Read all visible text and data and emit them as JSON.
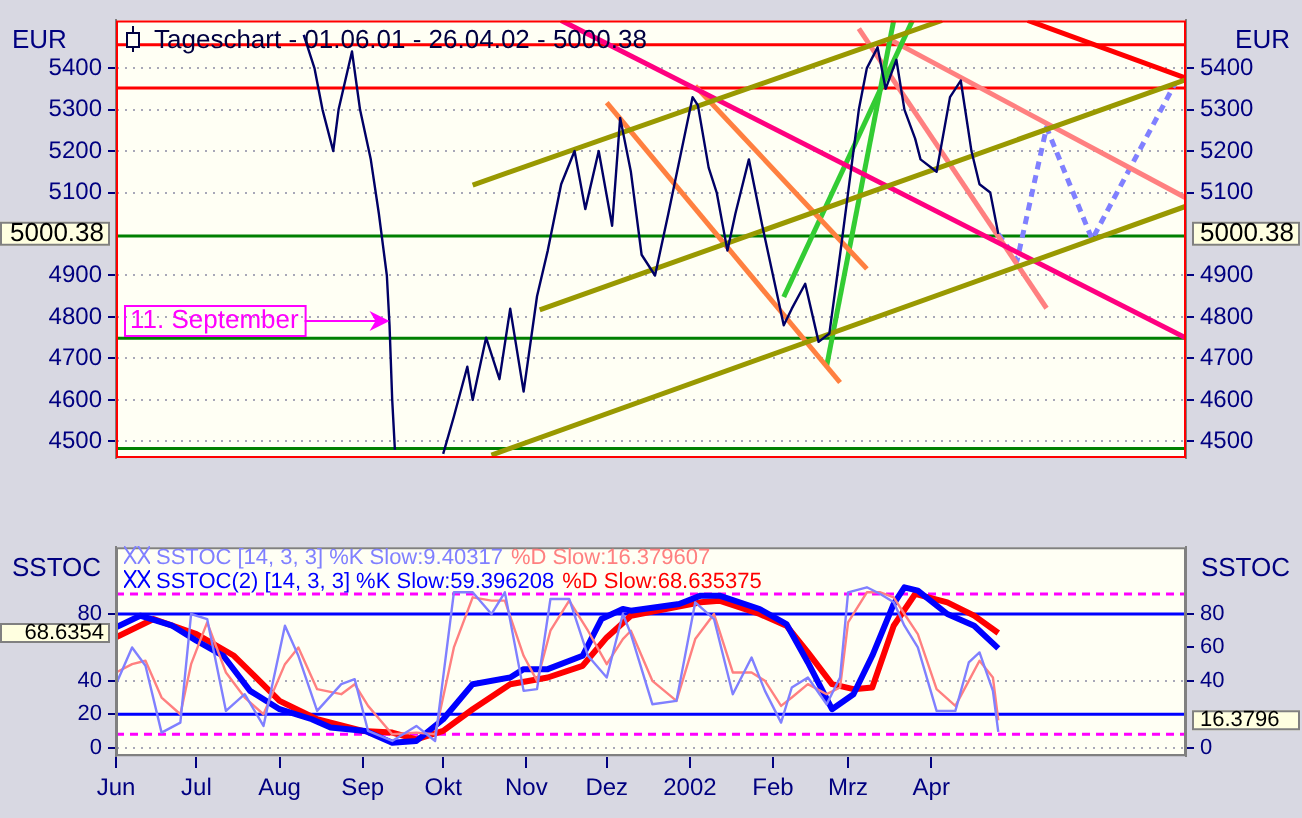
{
  "chart_data": [
    {
      "type": "line",
      "title": "Tageschart - 01.06.01 - 26.04.02 - 5000.38",
      "ylabel": "EUR",
      "y2label": "EUR",
      "xlim": [
        "2001-06-01",
        "2002-07-05"
      ],
      "ylim": [
        4460,
        5515
      ],
      "yticks": [
        4500,
        4600,
        4700,
        4800,
        4900,
        5100,
        5200,
        5300,
        5400
      ],
      "y2lim": [
        4460,
        5515
      ],
      "y2ticks": [
        4500,
        4600,
        4700,
        4800,
        4900,
        5100,
        5200,
        5300,
        5400
      ],
      "tick_labels": "y",
      "grid": "y",
      "series": [
        {
          "color": "#000066",
          "x": [
            "2001-08-10",
            "2001-08-14",
            "2001-08-17",
            "2001-08-21",
            "2001-08-23",
            "2001-08-28",
            "2001-08-31",
            "2001-09-04",
            "2001-09-07",
            "2001-09-10",
            "2001-09-11",
            "2001-09-12",
            "2001-09-13",
            "2001-09-17",
            "2001-10-01",
            "2001-10-05",
            "2001-10-10",
            "2001-10-12",
            "2001-10-17",
            "2001-10-22",
            "2001-10-26",
            "2001-10-31",
            "2001-11-05",
            "2001-11-09",
            "2001-11-14",
            "2001-11-19",
            "2001-11-23",
            "2001-11-28",
            "2001-12-03",
            "2001-12-06",
            "2001-12-10",
            "2001-12-14",
            "2001-12-19",
            "2001-12-24",
            "2002-01-02",
            "2002-01-04",
            "2002-01-08",
            "2002-01-11",
            "2002-01-15",
            "2002-01-18",
            "2002-01-23",
            "2002-01-28",
            "2002-02-01",
            "2002-02-05",
            "2002-02-08",
            "2002-02-13",
            "2002-02-18",
            "2002-02-22",
            "2002-02-26",
            "2002-03-01",
            "2002-03-05",
            "2002-03-08",
            "2002-03-12",
            "2002-03-15",
            "2002-03-19",
            "2002-03-22",
            "2002-03-26",
            "2002-03-28",
            "2002-04-03",
            "2002-04-08",
            "2002-04-12",
            "2002-04-16",
            "2002-04-19",
            "2002-04-23",
            "2002-04-26"
          ],
          "values": [
            5480,
            5400,
            5300,
            5200,
            5300,
            5440,
            5300,
            5180,
            5050,
            4900,
            4780,
            4600,
            4480,
            null,
            4470,
            4560,
            4680,
            4600,
            4750,
            4650,
            4820,
            4620,
            4850,
            4960,
            5120,
            5200,
            5060,
            5200,
            5020,
            5280,
            5150,
            4950,
            4900,
            5050,
            5330,
            5310,
            5160,
            5100,
            4960,
            5050,
            5180,
            5020,
            4900,
            4780,
            4820,
            4880,
            4740,
            4760,
            4950,
            5100,
            5300,
            5400,
            5450,
            5350,
            5420,
            5300,
            5230,
            5180,
            5150,
            5330,
            5370,
            5200,
            5120,
            5100,
            5000.38
          ]
        },
        {
          "type": "line",
          "color": "#999900",
          "x": [
            "2001-10-12",
            "2002-04-05"
          ],
          "values": [
            5118,
            5515
          ]
        },
        {
          "type": "line",
          "color": "#999900",
          "x": [
            "2001-11-06",
            "2002-07-05"
          ],
          "values": [
            4817,
            5372
          ]
        },
        {
          "type": "line",
          "color": "#999900",
          "x": [
            "2001-10-19",
            "2002-07-05"
          ],
          "values": [
            4467,
            5067
          ]
        },
        {
          "type": "line",
          "color": "#ff0080",
          "x": [
            "2001-11-14",
            "2002-07-05"
          ],
          "values": [
            5515,
            4749
          ]
        },
        {
          "type": "line",
          "color": "#ff0000",
          "x": [
            "2002-05-07",
            "2002-07-05"
          ],
          "values": [
            5515,
            5376
          ]
        },
        {
          "type": "line",
          "color": "#ff8040",
          "x": [
            "2001-12-01",
            "2002-02-26"
          ],
          "values": [
            5317,
            4642
          ]
        },
        {
          "type": "line",
          "color": "#ff8040",
          "x": [
            "2002-01-03",
            "2002-03-08"
          ],
          "values": [
            5357,
            4916
          ]
        },
        {
          "type": "line",
          "color": "#33cc33",
          "x": [
            "2002-02-05",
            "2002-03-25"
          ],
          "values": [
            4848,
            5515
          ]
        },
        {
          "type": "line",
          "color": "#33cc33",
          "x": [
            "2002-02-21",
            "2002-03-18"
          ],
          "values": [
            4682,
            5515
          ]
        },
        {
          "type": "line",
          "color": "#ff8080",
          "x": [
            "2002-03-05",
            "2002-05-14"
          ],
          "values": [
            5495,
            4821
          ]
        },
        {
          "type": "line",
          "color": "#ff8080",
          "x": [
            "2002-03-16",
            "2002-07-05"
          ],
          "values": [
            5471,
            5087
          ]
        },
        {
          "type": "line",
          "color": "#8080ff",
          "line_style": "dashed",
          "x": [
            "2002-04-26",
            "2002-05-03",
            "2002-05-14",
            "2002-05-31",
            "2002-07-01"
          ],
          "values": [
            5000.38,
            4936,
            5257,
            4987,
            5364
          ]
        }
      ],
      "ref_lines": [
        {
          "axis": "y",
          "value": 5456,
          "color": "#ff0000"
        },
        {
          "axis": "y",
          "value": 5352,
          "color": "#ff0000"
        },
        {
          "axis": "y",
          "value": 4995,
          "color": "#008000"
        },
        {
          "axis": "y",
          "value": 4749,
          "color": "#008000"
        },
        {
          "axis": "y",
          "value": 4483,
          "color": "#008000"
        }
      ],
      "annotations": [
        {
          "text": "5000.38",
          "x": "2001-06-01",
          "y": 5000.38
        },
        {
          "text": "5000.38",
          "x": "2002-07-05",
          "y": 5000.38
        },
        {
          "text": "11. September",
          "x": "2001-09-11",
          "y": 4790
        }
      ]
    },
    {
      "type": "line",
      "ylabel": "SSTOC",
      "y2label": "SSTOC",
      "legend": "top left",
      "grid": "y",
      "xlim": [
        "2001-06-01",
        "2002-07-05"
      ],
      "xticks": [
        {
          "value": "2001-06-01",
          "label": "Jun"
        },
        {
          "value": "2001-07-01",
          "label": "Jul"
        },
        {
          "value": "2001-08-01",
          "label": "Aug"
        },
        {
          "value": "2001-09-01",
          "label": "Sep"
        },
        {
          "value": "2001-10-01",
          "label": "Okt"
        },
        {
          "value": "2001-11-01",
          "label": "Nov"
        },
        {
          "value": "2001-12-01",
          "label": "Dez"
        },
        {
          "value": "2002-01-01",
          "label": "2002"
        },
        {
          "value": "2002-02-01",
          "label": "Feb"
        },
        {
          "value": "2002-03-01",
          "label": "Mrz"
        },
        {
          "value": "2002-04-01",
          "label": "Apr"
        }
      ],
      "ylim": [
        -5,
        120
      ],
      "yticks": [
        0,
        20,
        40,
        80
      ],
      "y2lim": [
        -5,
        120
      ],
      "y2ticks": [
        0,
        40,
        60,
        80
      ],
      "series": [
        {
          "name": "SSTOC [14, 3, 3] %K Slow:9.40317",
          "color": "#8080ff",
          "x": [
            "2001-06-01",
            "2001-06-07",
            "2001-06-12",
            "2001-06-18",
            "2001-06-25",
            "2001-06-29",
            "2001-07-05",
            "2001-07-12",
            "2001-07-19",
            "2001-07-26",
            "2001-08-03",
            "2001-08-08",
            "2001-08-15",
            "2001-08-24",
            "2001-08-29",
            "2001-09-03",
            "2001-09-12",
            "2001-09-21",
            "2001-09-28",
            "2001-10-05",
            "2001-10-12",
            "2001-10-19",
            "2001-10-24",
            "2001-10-31",
            "2001-11-05",
            "2001-11-10",
            "2001-11-17",
            "2001-11-24",
            "2001-12-01",
            "2001-12-07",
            "2001-12-10",
            "2001-12-18",
            "2001-12-27",
            "2002-01-03",
            "2002-01-10",
            "2002-01-17",
            "2002-01-24",
            "2002-01-29",
            "2002-02-04",
            "2002-02-08",
            "2002-02-14",
            "2002-02-21",
            "2002-02-26",
            "2002-03-01",
            "2002-03-08",
            "2002-03-13",
            "2002-03-18",
            "2002-03-22",
            "2002-03-27",
            "2002-04-03",
            "2002-04-10",
            "2002-04-15",
            "2002-04-19",
            "2002-04-24",
            "2002-04-26"
          ],
          "values": [
            38,
            60,
            49,
            9,
            15,
            80,
            77,
            22,
            32,
            13,
            73,
            55,
            22,
            38,
            41,
            10,
            4,
            13,
            4,
            93,
            93,
            80,
            93,
            34,
            35,
            89,
            89,
            55,
            42,
            80,
            68,
            26,
            28,
            87,
            77,
            32,
            54,
            34,
            15,
            36,
            42,
            26,
            42,
            93,
            96,
            92,
            87,
            73,
            60,
            22,
            22,
            51,
            57,
            34,
            9.40317
          ]
        },
        {
          "name": "%D Slow:16.379607",
          "color": "#ff8080",
          "x": [
            "2001-06-01",
            "2001-06-07",
            "2001-06-12",
            "2001-06-18",
            "2001-06-25",
            "2001-06-29",
            "2001-07-05",
            "2001-07-12",
            "2001-07-19",
            "2001-07-26",
            "2001-08-03",
            "2001-08-08",
            "2001-08-15",
            "2001-08-24",
            "2001-08-29",
            "2001-09-03",
            "2001-09-12",
            "2001-09-21",
            "2001-09-28",
            "2001-10-05",
            "2001-10-12",
            "2001-10-19",
            "2001-10-24",
            "2001-10-31",
            "2001-11-05",
            "2001-11-10",
            "2001-11-17",
            "2001-11-24",
            "2001-12-01",
            "2001-12-07",
            "2001-12-10",
            "2001-12-18",
            "2001-12-27",
            "2002-01-03",
            "2002-01-10",
            "2002-01-17",
            "2002-01-24",
            "2002-01-29",
            "2002-02-04",
            "2002-02-08",
            "2002-02-14",
            "2002-02-21",
            "2002-02-26",
            "2002-03-01",
            "2002-03-08",
            "2002-03-13",
            "2002-03-18",
            "2002-03-22",
            "2002-03-27",
            "2002-04-03",
            "2002-04-10",
            "2002-04-15",
            "2002-04-19",
            "2002-04-24",
            "2002-04-26"
          ],
          "values": [
            45,
            50,
            52,
            30,
            20,
            50,
            75,
            45,
            30,
            20,
            50,
            60,
            35,
            32,
            38,
            25,
            8,
            9,
            8,
            60,
            90,
            88,
            88,
            55,
            40,
            70,
            88,
            70,
            50,
            65,
            70,
            40,
            28,
            65,
            80,
            45,
            45,
            40,
            25,
            30,
            38,
            32,
            36,
            75,
            93,
            93,
            90,
            80,
            68,
            35,
            25,
            40,
            52,
            42,
            16.379607
          ]
        },
        {
          "name": "SSTOC(2) [14, 3, 3] %K Slow:59.396208",
          "color": "#0000ff",
          "x": [
            "2001-06-01",
            "2001-06-10",
            "2001-06-22",
            "2001-07-01",
            "2001-07-11",
            "2001-07-21",
            "2001-08-01",
            "2001-08-13",
            "2001-08-20",
            "2001-09-02",
            "2001-09-12",
            "2001-09-21",
            "2001-10-01",
            "2001-10-12",
            "2001-10-26",
            "2001-10-31",
            "2001-11-09",
            "2001-11-22",
            "2001-11-29",
            "2001-12-07",
            "2001-12-10",
            "2001-12-28",
            "2002-01-05",
            "2002-01-12",
            "2002-01-27",
            "2002-02-06",
            "2002-02-14",
            "2002-02-23",
            "2002-03-03",
            "2002-03-10",
            "2002-03-18",
            "2002-03-22",
            "2002-03-27",
            "2002-04-07",
            "2002-04-17",
            "2002-04-26"
          ],
          "values": [
            72,
            79,
            73,
            64,
            55,
            34,
            23,
            17,
            12,
            10,
            3,
            4,
            17,
            38,
            42,
            47,
            47,
            55,
            77,
            83,
            82,
            86,
            91,
            91,
            83,
            74,
            51,
            23,
            32,
            55,
            86,
            96,
            94,
            80,
            73,
            59.396208
          ]
        },
        {
          "name": "%D Slow:68.635375",
          "color": "#ff0000",
          "x": [
            "2001-06-01",
            "2001-06-15",
            "2001-07-01",
            "2001-07-15",
            "2001-08-01",
            "2001-08-15",
            "2001-09-01",
            "2001-09-12",
            "2001-09-21",
            "2001-10-01",
            "2001-10-12",
            "2001-10-26",
            "2001-11-09",
            "2001-11-22",
            "2001-12-01",
            "2001-12-10",
            "2002-01-05",
            "2002-01-12",
            "2002-01-27",
            "2002-02-06",
            "2002-02-14",
            "2002-02-23",
            "2002-03-03",
            "2002-03-10",
            "2002-03-18",
            "2002-03-26",
            "2002-04-07",
            "2002-04-17",
            "2002-04-26"
          ],
          "values": [
            66,
            77,
            68,
            55,
            28,
            17,
            10,
            9,
            5,
            10,
            23,
            38,
            42,
            49,
            66,
            79,
            87,
            88,
            80,
            73,
            57,
            38,
            35,
            36,
            73,
            92,
            87,
            79,
            68.635375
          ]
        }
      ],
      "ref_lines": [
        {
          "axis": "y",
          "value": 80,
          "color": "#0000ff"
        },
        {
          "axis": "y",
          "value": 20,
          "color": "#0000ff"
        },
        {
          "axis": "y",
          "value": 92,
          "color": "#ff00ff",
          "line_style": "dashed"
        },
        {
          "axis": "y",
          "value": 8,
          "color": "#ff00ff",
          "line_style": "dashed"
        }
      ],
      "annotations": [
        {
          "text": "68.6354",
          "x": "2001-06-01",
          "y": 68.6354
        },
        {
          "text": "16.3796",
          "x": "2002-07-05",
          "y": 16.3796
        }
      ]
    }
  ]
}
